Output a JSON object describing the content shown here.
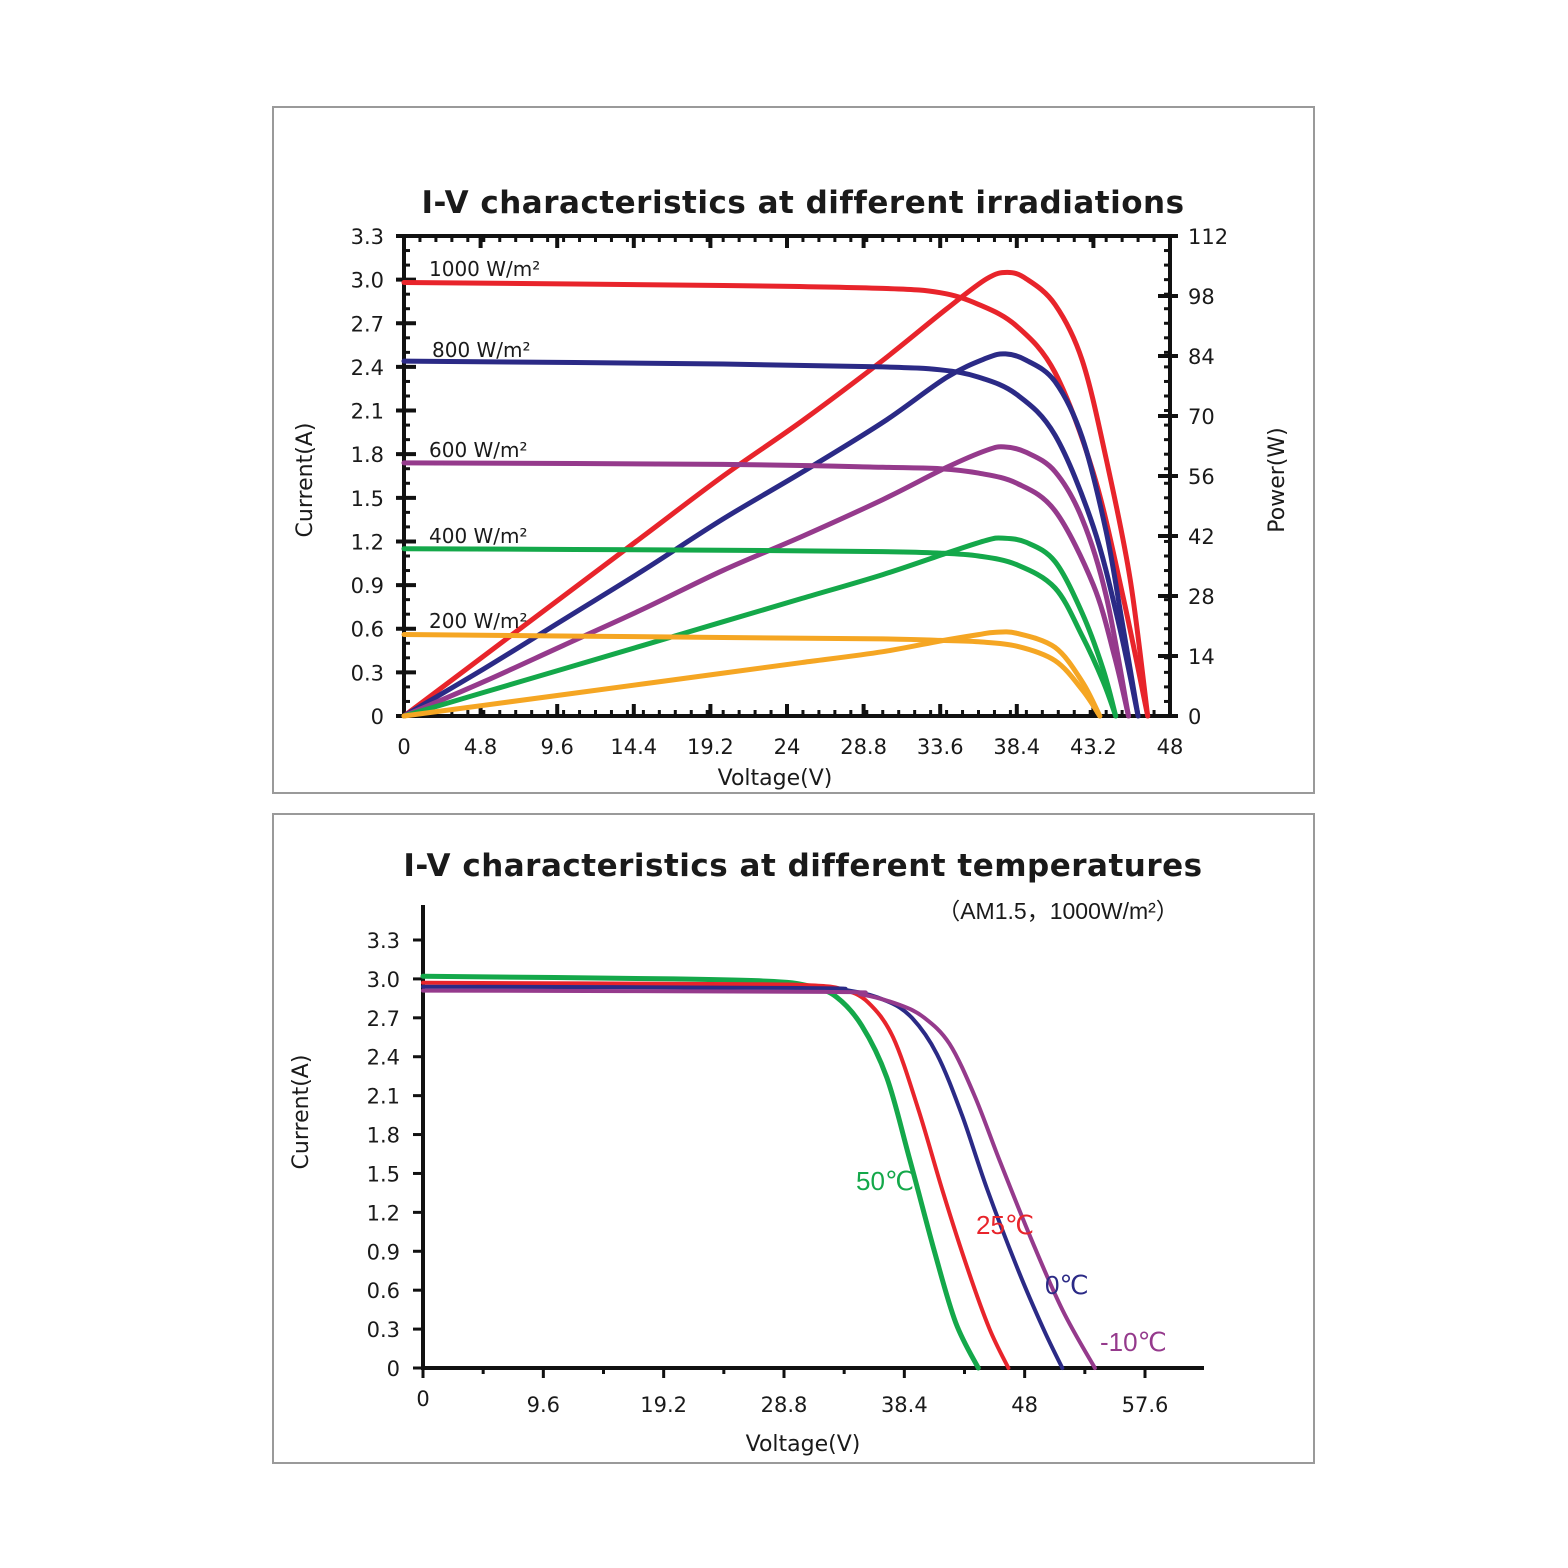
{
  "colors": {
    "red": "#e8242b",
    "blue": "#2b2a86",
    "purple": "#953a8c",
    "green": "#14a84a",
    "orange": "#f5a623"
  },
  "chart_data": [
    {
      "type": "line",
      "title": "I-V characteristics at different irradiations",
      "xlabel": "Voltage(V)",
      "ylabel": "Current(A)",
      "y2label": "Power(W)",
      "xlim": [
        0,
        48
      ],
      "ylim": [
        0,
        3.3
      ],
      "y2lim": [
        0,
        112
      ],
      "xticks": [
        "0",
        "4.8",
        "9.6",
        "14.4",
        "19.2",
        "24",
        "28.8",
        "33.6",
        "38.4",
        "43.2",
        "48"
      ],
      "yticks": [
        "0",
        "0.3",
        "0.6",
        "0.9",
        "1.2",
        "1.5",
        "1.8",
        "2.1",
        "2.4",
        "2.7",
        "3.0",
        "3.3"
      ],
      "y2ticks": [
        "0",
        "14",
        "28",
        "42",
        "56",
        "70",
        "84",
        "98",
        "112"
      ],
      "series": [
        {
          "name": "1000 W/m²",
          "color": "red",
          "isc": 2.98,
          "voc": 46.6,
          "pmax": 103.5,
          "vmp": 37.8,
          "iv": [
            [
              0,
              2.98
            ],
            [
              20,
              2.96
            ],
            [
              30,
              2.94
            ],
            [
              33.6,
              2.91
            ],
            [
              36,
              2.83
            ],
            [
              38.4,
              2.68
            ],
            [
              40.8,
              2.36
            ],
            [
              43.2,
              1.67
            ],
            [
              45,
              0.85
            ],
            [
              46.6,
              0
            ]
          ],
          "pv": [
            [
              0,
              0
            ],
            [
              5,
              14
            ],
            [
              10,
              28
            ],
            [
              15,
              42
            ],
            [
              20,
              56
            ],
            [
              25,
              69
            ],
            [
              30,
              83
            ],
            [
              34,
              95
            ],
            [
              36.5,
              102
            ],
            [
              37.8,
              103.5
            ],
            [
              39,
              102
            ],
            [
              40.8,
              96
            ],
            [
              42.5,
              83
            ],
            [
              44,
              60
            ],
            [
              45.5,
              32
            ],
            [
              46.6,
              0
            ]
          ]
        },
        {
          "name": "800 W/m²",
          "color": "blue",
          "isc": 2.44,
          "voc": 46.0,
          "pmax": 84.5,
          "vmp": 37.7,
          "iv": [
            [
              0,
              2.44
            ],
            [
              20,
              2.42
            ],
            [
              30,
              2.4
            ],
            [
              33.6,
              2.38
            ],
            [
              36,
              2.33
            ],
            [
              38.4,
              2.21
            ],
            [
              40.8,
              1.93
            ],
            [
              43.2,
              1.3
            ],
            [
              44.8,
              0.63
            ],
            [
              46.0,
              0
            ]
          ],
          "pv": [
            [
              0,
              0
            ],
            [
              5,
              11
            ],
            [
              10,
              22.5
            ],
            [
              15,
              34
            ],
            [
              20,
              46
            ],
            [
              25,
              57
            ],
            [
              30,
              68.5
            ],
            [
              34,
              79
            ],
            [
              36.5,
              83.5
            ],
            [
              37.7,
              84.5
            ],
            [
              39,
              83
            ],
            [
              40.8,
              78
            ],
            [
              42.5,
              65
            ],
            [
              44,
              43
            ],
            [
              45,
              22
            ],
            [
              46.0,
              0
            ]
          ]
        },
        {
          "name": "600 W/m²",
          "color": "purple",
          "isc": 1.74,
          "voc": 45.4,
          "pmax": 62.8,
          "vmp": 37.6,
          "iv": [
            [
              0,
              1.74
            ],
            [
              20,
              1.73
            ],
            [
              30,
              1.71
            ],
            [
              33.6,
              1.7
            ],
            [
              36,
              1.67
            ],
            [
              38.4,
              1.6
            ],
            [
              40.8,
              1.41
            ],
            [
              43.2,
              0.9
            ],
            [
              44.5,
              0.42
            ],
            [
              45.4,
              0
            ]
          ],
          "pv": [
            [
              0,
              0
            ],
            [
              5,
              8
            ],
            [
              10,
              16.5
            ],
            [
              15,
              25
            ],
            [
              20,
              34
            ],
            [
              25,
              42
            ],
            [
              30,
              50.5
            ],
            [
              34,
              58
            ],
            [
              36.5,
              62
            ],
            [
              37.6,
              62.8
            ],
            [
              39,
              61.5
            ],
            [
              40.8,
              57
            ],
            [
              42.5,
              46
            ],
            [
              44,
              28
            ],
            [
              45.4,
              0
            ]
          ]
        },
        {
          "name": "400 W/m²",
          "color": "green",
          "isc": 1.15,
          "voc": 44.6,
          "pmax": 41.5,
          "vmp": 37.5,
          "iv": [
            [
              0,
              1.15
            ],
            [
              20,
              1.14
            ],
            [
              30,
              1.13
            ],
            [
              33.6,
              1.12
            ],
            [
              36,
              1.1
            ],
            [
              38.4,
              1.04
            ],
            [
              40.8,
              0.88
            ],
            [
              42.5,
              0.55
            ],
            [
              43.8,
              0.24
            ],
            [
              44.6,
              0
            ]
          ],
          "pv": [
            [
              0,
              0
            ],
            [
              5,
              5.5
            ],
            [
              10,
              11
            ],
            [
              15,
              16.5
            ],
            [
              20,
              22
            ],
            [
              25,
              27.5
            ],
            [
              30,
              33
            ],
            [
              34,
              38
            ],
            [
              36.5,
              41
            ],
            [
              37.5,
              41.5
            ],
            [
              39,
              40.5
            ],
            [
              40.8,
              36
            ],
            [
              42.5,
              24
            ],
            [
              43.8,
              11
            ],
            [
              44.6,
              0
            ]
          ]
        },
        {
          "name": "200 W/m²",
          "color": "orange",
          "isc": 0.56,
          "voc": 43.6,
          "pmax": 19.5,
          "vmp": 37.0,
          "iv": [
            [
              0,
              0.56
            ],
            [
              20,
              0.54
            ],
            [
              30,
              0.53
            ],
            [
              33.6,
              0.52
            ],
            [
              36,
              0.51
            ],
            [
              38.4,
              0.48
            ],
            [
              40.8,
              0.38
            ],
            [
              42.5,
              0.18
            ],
            [
              43.6,
              0
            ]
          ],
          "pv": [
            [
              0,
              0
            ],
            [
              5,
              2.5
            ],
            [
              10,
              5
            ],
            [
              15,
              7.5
            ],
            [
              20,
              10
            ],
            [
              25,
              12.5
            ],
            [
              30,
              15
            ],
            [
              33.6,
              17.5
            ],
            [
              36,
              19
            ],
            [
              37.0,
              19.5
            ],
            [
              38.4,
              19.3
            ],
            [
              40.8,
              16
            ],
            [
              42.5,
              8
            ],
            [
              43.6,
              0
            ]
          ]
        }
      ]
    },
    {
      "type": "line",
      "title": "I-V characteristics at different temperatures",
      "subtitle": "（AM1.5，1000W/m²）",
      "xlabel": "Voltage(V)",
      "ylabel": "Current(A)",
      "xlim": [
        0,
        62.4
      ],
      "ylim": [
        0,
        3.3
      ],
      "xticks": [
        "0",
        "9.6",
        "19.2",
        "28.8",
        "38.4",
        "48",
        "57.6"
      ],
      "yticks": [
        "0",
        "0.3",
        "0.6",
        "0.9",
        "1.2",
        "1.5",
        "1.8",
        "2.1",
        "2.4",
        "2.7",
        "3.0",
        "3.3"
      ],
      "series": [
        {
          "name": "50℃",
          "color": "green",
          "iv": [
            [
              0,
              3.02
            ],
            [
              20,
              3.0
            ],
            [
              28,
              2.98
            ],
            [
              31,
              2.94
            ],
            [
              33,
              2.86
            ],
            [
              35,
              2.64
            ],
            [
              37,
              2.24
            ],
            [
              38.8,
              1.62
            ],
            [
              40.8,
              0.9
            ],
            [
              42.5,
              0.35
            ],
            [
              44.3,
              0
            ]
          ]
        },
        {
          "name": "25℃",
          "color": "red",
          "iv": [
            [
              0,
              2.97
            ],
            [
              25,
              2.96
            ],
            [
              31,
              2.95
            ],
            [
              33.5,
              2.92
            ],
            [
              35.5,
              2.82
            ],
            [
              37.5,
              2.55
            ],
            [
              39.5,
              2.0
            ],
            [
              41.5,
              1.35
            ],
            [
              43.5,
              0.75
            ],
            [
              45.2,
              0.3
            ],
            [
              46.7,
              0
            ]
          ]
        },
        {
          "name": "0℃",
          "color": "blue",
          "iv": [
            [
              0,
              2.94
            ],
            [
              30,
              2.93
            ],
            [
              34,
              2.91
            ],
            [
              37,
              2.83
            ],
            [
              39,
              2.7
            ],
            [
              41,
              2.42
            ],
            [
              43,
              1.95
            ],
            [
              45,
              1.38
            ],
            [
              47.5,
              0.75
            ],
            [
              49.5,
              0.3
            ],
            [
              51.0,
              0
            ]
          ]
        },
        {
          "name": "-10℃",
          "color": "purple",
          "iv": [
            [
              0,
              2.91
            ],
            [
              32,
              2.9
            ],
            [
              35,
              2.88
            ],
            [
              38,
              2.8
            ],
            [
              40,
              2.7
            ],
            [
              42,
              2.5
            ],
            [
              44,
              2.1
            ],
            [
              46,
              1.6
            ],
            [
              48.5,
              1.0
            ],
            [
              51,
              0.45
            ],
            [
              53.6,
              0
            ]
          ]
        }
      ]
    }
  ]
}
